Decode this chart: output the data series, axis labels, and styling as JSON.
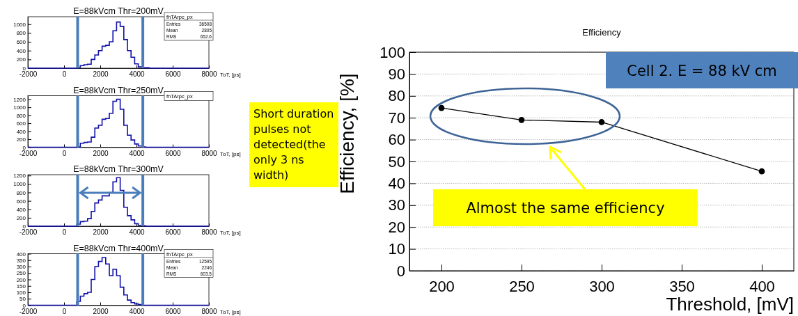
{
  "chart_data": [
    {
      "type": "histogram",
      "title": "E=88kVcm Thr=200mV",
      "xlabel": "ToT, [ps]",
      "legend_title": "fhTArpc_px",
      "annotations": [
        "Entries 36508",
        "Mean 2805",
        "RMS 652.6"
      ],
      "color": "#1010a8",
      "bins": [
        -2000,
        700,
        900,
        1100,
        1300,
        1500,
        1700,
        1900,
        2100,
        2300,
        2500,
        2700,
        2900,
        3100,
        3300,
        3500,
        3700,
        3900,
        4100,
        4300,
        4500,
        4700,
        8000
      ],
      "values": [
        0,
        20,
        60,
        80,
        90,
        200,
        300,
        400,
        500,
        520,
        600,
        850,
        1050,
        950,
        650,
        400,
        250,
        100,
        30,
        10,
        10,
        0
      ],
      "xlim": [
        -2000,
        8000
      ],
      "xticks": [
        -2000,
        0,
        2000,
        4000,
        6000,
        8000
      ],
      "ylim": [
        0,
        1170
      ],
      "yticks": [
        0,
        200,
        400,
        600,
        800,
        1000
      ],
      "ref_lines": [
        {
          "axis": "x",
          "value": 750,
          "color": "#4a7ebb"
        },
        {
          "axis": "x",
          "value": 4350,
          "color": "#4a7ebb"
        }
      ]
    },
    {
      "type": "histogram",
      "title": "E=88kVcm Thr=250mV",
      "xlabel": "ToT, [ps]",
      "legend_title": "fhTArpc_px",
      "color": "#1010a8",
      "bins": [
        -2000,
        700,
        900,
        1100,
        1300,
        1500,
        1700,
        1900,
        2100,
        2300,
        2500,
        2700,
        2900,
        3100,
        3300,
        3500,
        3700,
        3900,
        4100,
        4300,
        4500,
        4700,
        8000
      ],
      "values": [
        0,
        10,
        100,
        120,
        130,
        250,
        480,
        550,
        700,
        720,
        850,
        1150,
        1200,
        950,
        550,
        300,
        180,
        80,
        30,
        10,
        0,
        0
      ],
      "xlim": [
        -2000,
        8000
      ],
      "xticks": [
        -2000,
        0,
        2000,
        4000,
        6000,
        8000
      ],
      "ylim": [
        0,
        1290
      ],
      "yticks": [
        0,
        200,
        400,
        600,
        800,
        1000,
        1200
      ],
      "ref_lines": [
        {
          "axis": "x",
          "value": 750,
          "color": "#4a7ebb"
        },
        {
          "axis": "x",
          "value": 4350,
          "color": "#4a7ebb"
        }
      ]
    },
    {
      "type": "histogram",
      "title": "E=88kVcm Thr=300mV",
      "xlabel": "ToT, [ps]",
      "annotations": [
        "Short duration pulses not detected(the only 3 ns width)"
      ],
      "color": "#1010a8",
      "bins": [
        -2000,
        700,
        900,
        1100,
        1300,
        1500,
        1700,
        1900,
        2100,
        2300,
        2500,
        2700,
        2900,
        3100,
        3300,
        3500,
        3700,
        3900,
        4100,
        4300,
        4500,
        4700,
        8000
      ],
      "values": [
        0,
        50,
        110,
        120,
        180,
        350,
        550,
        620,
        720,
        720,
        800,
        1050,
        1150,
        850,
        450,
        250,
        150,
        60,
        20,
        10,
        0,
        0
      ],
      "xlim": [
        -2000,
        8000
      ],
      "xticks": [
        -2000,
        0,
        2000,
        4000,
        6000,
        8000
      ],
      "ylim": [
        0,
        1220
      ],
      "yticks": [
        0,
        200,
        400,
        600,
        800,
        1000,
        1200
      ],
      "ref_lines": [
        {
          "axis": "x",
          "value": 750,
          "color": "#4a7ebb"
        },
        {
          "axis": "x",
          "value": 4350,
          "color": "#4a7ebb"
        }
      ]
    },
    {
      "type": "histogram",
      "title": "E=88kVcm Thr=400mV",
      "xlabel": "ToT, [ps]",
      "legend_title": "fhTArpc_px",
      "annotations": [
        "Entries 12595",
        "Mean 2246",
        "RMS 603.5"
      ],
      "color": "#1010a8",
      "bins": [
        -2000,
        700,
        900,
        1100,
        1300,
        1500,
        1700,
        1900,
        2100,
        2300,
        2500,
        2700,
        2900,
        3100,
        3300,
        3500,
        3700,
        3900,
        4100,
        4300,
        4500,
        4700,
        8000
      ],
      "values": [
        0,
        30,
        70,
        90,
        100,
        200,
        300,
        340,
        370,
        320,
        230,
        280,
        230,
        140,
        80,
        40,
        20,
        10,
        5,
        0,
        0,
        0
      ],
      "xlim": [
        -2000,
        8000
      ],
      "xticks": [
        -2000,
        0,
        2000,
        4000,
        6000,
        8000
      ],
      "ylim": [
        0,
        400
      ],
      "yticks": [
        0,
        50,
        100,
        150,
        200,
        250,
        300,
        350,
        400
      ],
      "ref_lines": [
        {
          "axis": "x",
          "value": 750,
          "color": "#4a7ebb"
        },
        {
          "axis": "x",
          "value": 4350,
          "color": "#4a7ebb"
        }
      ]
    },
    {
      "type": "line",
      "title": "Efficiency",
      "xlabel": "Threshold, [mV]",
      "ylabel": "Efficiency,  [%]",
      "annotations": [
        "Cell 2. E = 88 kV cm",
        "Almost the same efficiency"
      ],
      "x": [
        200,
        250,
        300,
        400
      ],
      "values": [
        74.5,
        69,
        68,
        45.5
      ],
      "color": "#000000",
      "marker": "circle",
      "grid": "y",
      "xlim": [
        180,
        420
      ],
      "xticks": [
        200,
        250,
        300,
        350,
        400
      ],
      "ylim": [
        0,
        100
      ],
      "yticks": [
        0,
        10,
        20,
        30,
        40,
        50,
        60,
        70,
        80,
        90,
        100
      ]
    }
  ]
}
